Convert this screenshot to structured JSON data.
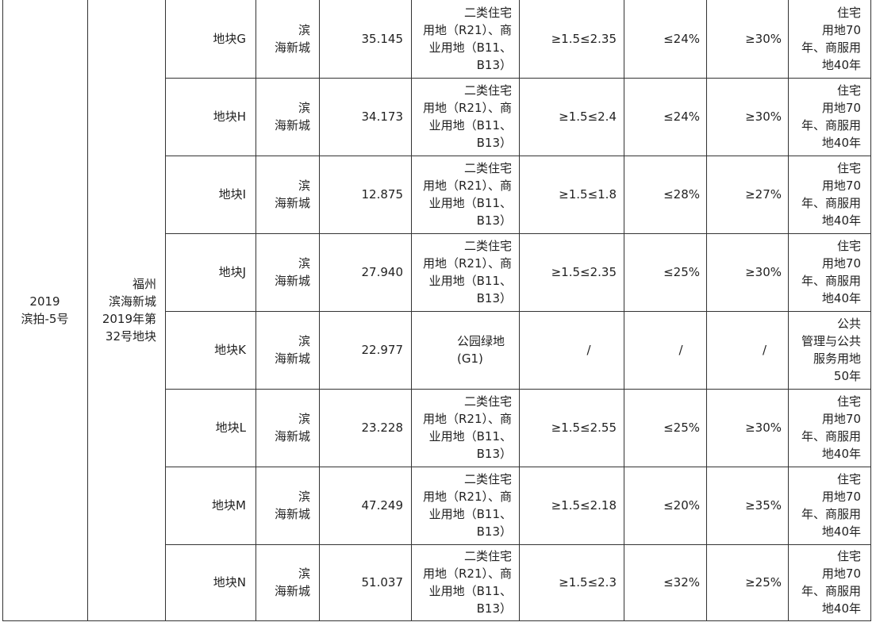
{
  "group": {
    "project_lines": [
      "2019",
      "滨拍-5号"
    ],
    "name_lines": [
      "福州",
      "滨海新城",
      "2019年第",
      "32号地块"
    ]
  },
  "rows": [
    {
      "plot": "地块G",
      "area_lines": [
        "滨",
        "海新城"
      ],
      "size": "35.145",
      "use_lines": [
        "二类住宅",
        "用地（R21）、商",
        "业用地（B11、",
        "B13）"
      ],
      "far": "≥1.5≤2.35",
      "density": "≤24%",
      "green": "≥30%",
      "term_lines": [
        "住宅",
        "用地70",
        "年、商服用",
        "地40年"
      ]
    },
    {
      "plot": "地块H",
      "area_lines": [
        "滨",
        "海新城"
      ],
      "size": "34.173",
      "use_lines": [
        "二类住宅",
        "用地（R21）、商",
        "业用地（B11、",
        "B13）"
      ],
      "far": "≥1.5≤2.4",
      "density": "≤24%",
      "green": "≥30%",
      "term_lines": [
        "住宅",
        "用地70",
        "年、商服用",
        "地40年"
      ]
    },
    {
      "plot": "地块I",
      "area_lines": [
        "滨",
        "海新城"
      ],
      "size": "12.875",
      "use_lines": [
        "二类住宅",
        "用地（R21）、商",
        "业用地（B11、",
        "B13）"
      ],
      "far": "≥1.5≤1.8",
      "density": "≤28%",
      "green": "≥27%",
      "term_lines": [
        "住宅",
        "用地70",
        "年、商服用",
        "地40年"
      ]
    },
    {
      "plot": "地块J",
      "area_lines": [
        "滨",
        "海新城"
      ],
      "size": "27.940",
      "use_lines": [
        "二类住宅",
        "用地（R21）、商",
        "业用地（B11、",
        "B13）"
      ],
      "far": "≥1.5≤2.35",
      "density": "≤25%",
      "green": "≥30%",
      "term_lines": [
        "住宅",
        "用地70",
        "年、商服用",
        "地40年"
      ]
    },
    {
      "plot": "地块K",
      "area_lines": [
        "滨",
        "海新城"
      ],
      "size": "22.977",
      "use_lines": [
        "公园绿地",
        "(G1)"
      ],
      "far": "/",
      "density": "/",
      "green": "/",
      "term_lines": [
        "公共",
        "管理与公共",
        "服务用地",
        "50年"
      ]
    },
    {
      "plot": "地块L",
      "area_lines": [
        "滨",
        "海新城"
      ],
      "size": "23.228",
      "use_lines": [
        "二类住宅",
        "用地（R21）、商",
        "业用地（B11、",
        "B13）"
      ],
      "far": "≥1.5≤2.55",
      "density": "≤25%",
      "green": "≥30%",
      "term_lines": [
        "住宅",
        "用地70",
        "年、商服用",
        "地40年"
      ]
    },
    {
      "plot": "地块M",
      "area_lines": [
        "滨",
        "海新城"
      ],
      "size": "47.249",
      "use_lines": [
        "二类住宅",
        "用地（R21）、商",
        "业用地（B11、",
        "B13）"
      ],
      "far": "≥1.5≤2.18",
      "density": "≤20%",
      "green": "≥35%",
      "term_lines": [
        "住宅",
        "用地70",
        "年、商服用",
        "地40年"
      ]
    },
    {
      "plot": "地块N",
      "area_lines": [
        "滨",
        "海新城"
      ],
      "size": "51.037",
      "use_lines": [
        "二类住宅",
        "用地（R21）、商",
        "业用地（B11、",
        "B13）"
      ],
      "far": "≥1.5≤2.3",
      "density": "≤32%",
      "green": "≥25%",
      "term_lines": [
        "住宅",
        "用地70",
        "年、商服用",
        "地40年"
      ]
    }
  ]
}
